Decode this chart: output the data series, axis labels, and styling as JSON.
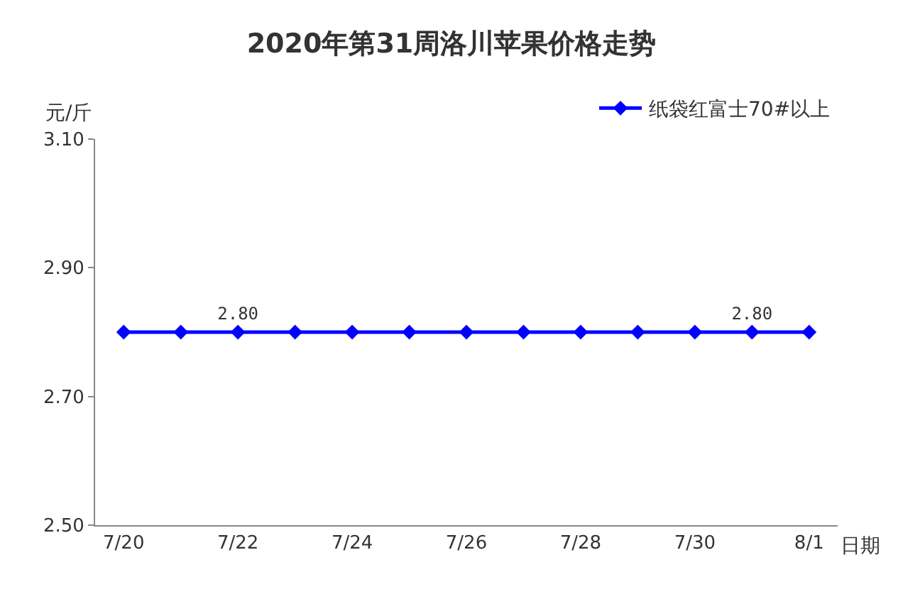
{
  "chart_data": {
    "type": "line",
    "title": "2020年第31周洛川苹果价格走势",
    "ylabel": "元/斤",
    "xlabel": "日期",
    "categories": [
      "7/20",
      null,
      "7/22",
      null,
      "7/24",
      null,
      "7/26",
      null,
      "7/28",
      null,
      "7/30",
      null,
      "8/1"
    ],
    "series": [
      {
        "name": "纸袋红富士70#以上",
        "color": "#0000ff",
        "values": [
          2.8,
          2.8,
          2.8,
          2.8,
          2.8,
          2.8,
          2.8,
          2.8,
          2.8,
          2.8,
          2.8,
          2.8,
          2.8
        ],
        "value_labels": [
          null,
          null,
          "2.80",
          null,
          null,
          null,
          null,
          null,
          null,
          null,
          null,
          "2.80",
          null
        ]
      }
    ],
    "ylim": [
      2.5,
      3.1
    ],
    "yticks": [
      {
        "value": 2.5,
        "label": "2.50"
      },
      {
        "value": 2.7,
        "label": "2.70"
      },
      {
        "value": 2.9,
        "label": "2.90"
      },
      {
        "value": 3.1,
        "label": "3.10"
      }
    ],
    "grid": false,
    "legend": "top right",
    "marker": "diamond",
    "line_style": "solid"
  }
}
